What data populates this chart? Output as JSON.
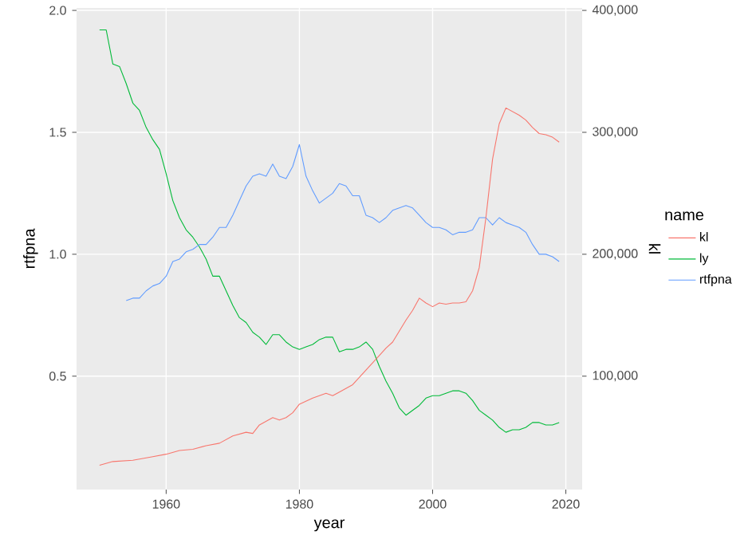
{
  "chart_data": {
    "type": "line",
    "xlabel": "year",
    "ylabel": "rtfpna",
    "y2label": "kl",
    "legend_title": "name",
    "legend": "right",
    "grid": true,
    "xlim": [
      1946.55,
      2022.45
    ],
    "xticks": [
      1960,
      1980,
      2000,
      2020
    ],
    "ylim": [
      0.035,
      2.01
    ],
    "yticks": [
      0.5,
      {
        "value": 1,
        "label": "1.0"
      },
      1.5,
      {
        "value": 2,
        "label": "2.0"
      }
    ],
    "y2lim": [
      7000,
      402000
    ],
    "y2ticks": [
      {
        "value": 100000,
        "label": "100,000"
      },
      {
        "value": 200000,
        "label": "200,000"
      },
      {
        "value": 300000,
        "label": "300,000"
      },
      {
        "value": 400000,
        "label": "400,000"
      }
    ],
    "series": [
      {
        "name": "kl",
        "color": "#f8766d",
        "axis": "y2",
        "x": [
          1950,
          1952,
          1955,
          1958,
          1960,
          1962,
          1964,
          1966,
          1968,
          1970,
          1972,
          1973,
          1974,
          1975,
          1976,
          1977,
          1978,
          1979,
          1980,
          1982,
          1984,
          1985,
          1986,
          1988,
          1990,
          1992,
          1993,
          1994,
          1995,
          1996,
          1997,
          1998,
          1999,
          2000,
          2001,
          2002,
          2003,
          2004,
          2005,
          2006,
          2007,
          2008,
          2009,
          2010,
          2011,
          2012,
          2013,
          2014,
          2015,
          2016,
          2017,
          2018,
          2019
        ],
        "values": [
          27000,
          30000,
          31000,
          34000,
          36000,
          39000,
          40000,
          43000,
          45000,
          51000,
          54000,
          53000,
          60000,
          63000,
          66000,
          64000,
          66000,
          70000,
          77000,
          82000,
          86000,
          84000,
          87000,
          93000,
          105000,
          117000,
          123000,
          128000,
          137000,
          146000,
          154000,
          164000,
          160000,
          157000,
          160000,
          159000,
          160000,
          160000,
          161000,
          170000,
          189000,
          230000,
          278000,
          307000,
          320000,
          317000,
          314000,
          310000,
          304000,
          299000,
          298000,
          296000,
          292000
        ]
      },
      {
        "name": "ly",
        "color": "#00ba38",
        "x": [
          1950,
          1951,
          1952,
          1953,
          1954,
          1955,
          1956,
          1957,
          1958,
          1959,
          1960,
          1961,
          1962,
          1963,
          1964,
          1965,
          1966,
          1967,
          1968,
          1969,
          1970,
          1971,
          1972,
          1973,
          1974,
          1975,
          1976,
          1977,
          1978,
          1979,
          1980,
          1981,
          1982,
          1983,
          1984,
          1985,
          1986,
          1987,
          1988,
          1989,
          1990,
          1991,
          1992,
          1993,
          1994,
          1995,
          1996,
          1997,
          1998,
          1999,
          2000,
          2001,
          2002,
          2003,
          2004,
          2005,
          2006,
          2007,
          2008,
          2009,
          2010,
          2011,
          2012,
          2013,
          2014,
          2015,
          2016,
          2017,
          2018,
          2019
        ],
        "values": [
          1.92,
          1.92,
          1.78,
          1.77,
          1.7,
          1.62,
          1.59,
          1.52,
          1.47,
          1.43,
          1.33,
          1.22,
          1.15,
          1.1,
          1.07,
          1.03,
          0.98,
          0.91,
          0.91,
          0.85,
          0.79,
          0.74,
          0.72,
          0.68,
          0.66,
          0.63,
          0.67,
          0.67,
          0.64,
          0.62,
          0.61,
          0.62,
          0.63,
          0.65,
          0.66,
          0.66,
          0.6,
          0.61,
          0.61,
          0.62,
          0.64,
          0.61,
          0.54,
          0.48,
          0.43,
          0.37,
          0.34,
          0.36,
          0.38,
          0.41,
          0.42,
          0.42,
          0.43,
          0.44,
          0.44,
          0.43,
          0.4,
          0.36,
          0.34,
          0.32,
          0.29,
          0.27,
          0.28,
          0.28,
          0.29,
          0.31,
          0.31,
          0.3,
          0.3,
          0.31
        ]
      },
      {
        "name": "rtfpna",
        "color": "#619cff",
        "x": [
          1954,
          1955,
          1956,
          1957,
          1958,
          1959,
          1960,
          1961,
          1962,
          1963,
          1964,
          1965,
          1966,
          1967,
          1968,
          1969,
          1970,
          1971,
          1972,
          1973,
          1974,
          1975,
          1976,
          1977,
          1978,
          1979,
          1980,
          1981,
          1982,
          1983,
          1984,
          1985,
          1986,
          1987,
          1988,
          1989,
          1990,
          1991,
          1992,
          1993,
          1994,
          1995,
          1996,
          1997,
          1998,
          1999,
          2000,
          2001,
          2002,
          2003,
          2004,
          2005,
          2006,
          2007,
          2008,
          2009,
          2010,
          2011,
          2012,
          2013,
          2014,
          2015,
          2016,
          2017,
          2018,
          2019
        ],
        "values": [
          0.81,
          0.82,
          0.82,
          0.85,
          0.87,
          0.88,
          0.91,
          0.97,
          0.98,
          1.01,
          1.02,
          1.04,
          1.04,
          1.07,
          1.11,
          1.11,
          1.16,
          1.22,
          1.28,
          1.32,
          1.33,
          1.32,
          1.37,
          1.32,
          1.31,
          1.36,
          1.45,
          1.32,
          1.26,
          1.21,
          1.23,
          1.25,
          1.29,
          1.28,
          1.24,
          1.24,
          1.16,
          1.15,
          1.13,
          1.15,
          1.18,
          1.19,
          1.2,
          1.19,
          1.16,
          1.13,
          1.11,
          1.11,
          1.1,
          1.08,
          1.09,
          1.09,
          1.1,
          1.15,
          1.15,
          1.12,
          1.15,
          1.13,
          1.12,
          1.11,
          1.09,
          1.04,
          1.0,
          1.0,
          0.99,
          0.97
        ]
      }
    ]
  }
}
